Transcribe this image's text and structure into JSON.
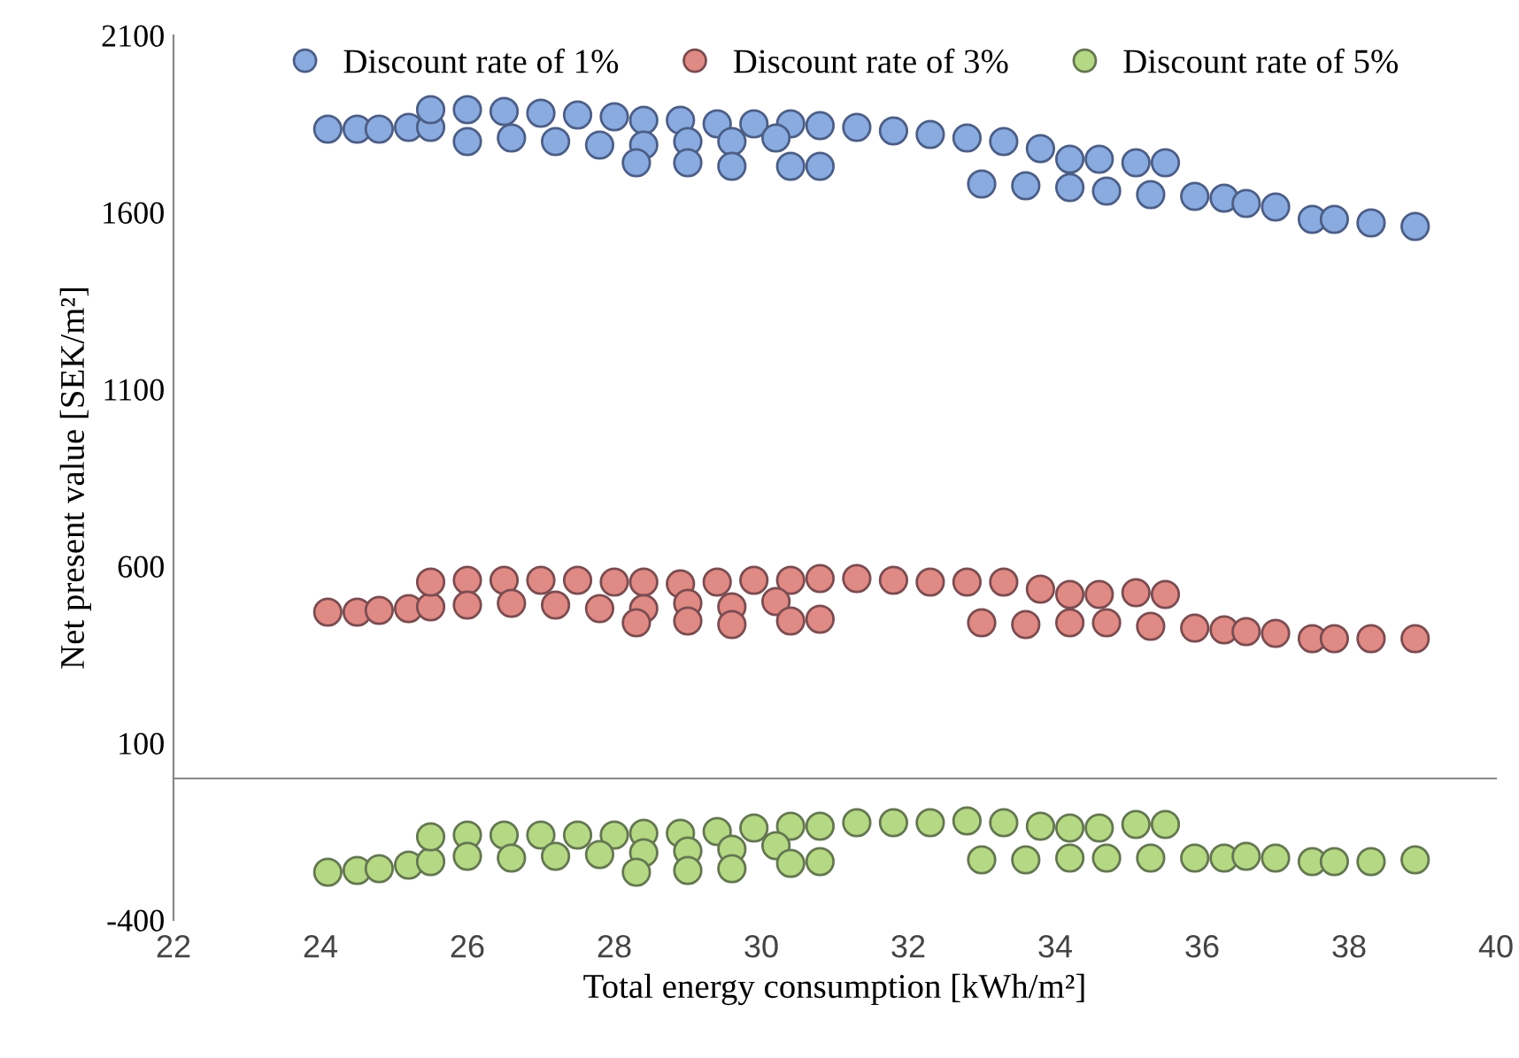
{
  "chart_data": {
    "type": "scatter",
    "xlabel": "Total energy consumption [kWh/m²]",
    "ylabel": "Net present value [SEK/m²]",
    "xlim": [
      22,
      40
    ],
    "xticks": [
      22,
      24,
      26,
      28,
      30,
      32,
      34,
      36,
      38,
      40
    ],
    "ylim": [
      -400,
      2100
    ],
    "yticks": [
      -400,
      100,
      600,
      1100,
      1600,
      2100
    ],
    "grid": false,
    "legend": "top",
    "marker": "circle",
    "series": [
      {
        "name": "Discount rate of 1%",
        "color": "#8aabe0",
        "x": [
          24.1,
          24.5,
          24.8,
          25.2,
          25.5,
          25.5,
          26.0,
          26.5,
          27.0,
          27.5,
          28.0,
          28.4,
          28.9,
          29.4,
          29.9,
          30.4,
          30.8,
          31.3,
          31.8,
          32.3,
          32.8,
          26.0,
          26.6,
          27.2,
          27.8,
          28.4,
          29.0,
          29.6,
          30.2,
          28.3,
          29.0,
          29.6,
          30.4,
          30.8,
          33.3,
          33.8,
          34.2,
          34.6,
          35.1,
          35.5,
          33.0,
          33.6,
          34.2,
          34.7,
          35.3,
          35.9,
          36.3,
          36.6,
          37.0,
          37.5,
          37.8,
          38.3,
          38.9
        ],
        "values": [
          1835,
          1835,
          1835,
          1840,
          1840,
          1890,
          1890,
          1885,
          1880,
          1875,
          1870,
          1860,
          1860,
          1850,
          1850,
          1850,
          1845,
          1840,
          1830,
          1820,
          1810,
          1800,
          1810,
          1800,
          1790,
          1790,
          1800,
          1800,
          1810,
          1740,
          1740,
          1730,
          1730,
          1730,
          1800,
          1780,
          1750,
          1750,
          1740,
          1740,
          1680,
          1675,
          1670,
          1660,
          1650,
          1645,
          1640,
          1625,
          1615,
          1580,
          1580,
          1570,
          1560
        ]
      },
      {
        "name": "Discount rate of 3%",
        "color": "#e08a85",
        "x": [
          24.1,
          24.5,
          24.8,
          25.2,
          25.5,
          25.5,
          26.0,
          26.5,
          27.0,
          27.5,
          28.0,
          28.4,
          28.9,
          29.4,
          29.9,
          30.4,
          30.8,
          31.3,
          31.8,
          32.3,
          32.8,
          26.0,
          26.6,
          27.2,
          27.8,
          28.4,
          29.0,
          29.6,
          30.2,
          28.3,
          29.0,
          29.6,
          30.4,
          30.8,
          33.3,
          33.8,
          34.2,
          34.6,
          35.1,
          35.5,
          33.0,
          33.6,
          34.2,
          34.7,
          35.3,
          35.9,
          36.3,
          36.6,
          37.0,
          37.5,
          37.8,
          38.3,
          38.9
        ],
        "values": [
          470,
          470,
          475,
          480,
          485,
          555,
          560,
          560,
          560,
          560,
          555,
          555,
          550,
          555,
          560,
          560,
          565,
          565,
          560,
          555,
          555,
          490,
          495,
          490,
          480,
          480,
          495,
          485,
          500,
          440,
          445,
          435,
          445,
          450,
          555,
          535,
          520,
          520,
          525,
          520,
          440,
          435,
          440,
          440,
          430,
          425,
          420,
          415,
          410,
          395,
          395,
          395,
          395
        ]
      },
      {
        "name": "Discount rate of 5%",
        "color": "#b5d885",
        "x": [
          24.1,
          24.5,
          24.8,
          25.2,
          25.5,
          25.5,
          26.0,
          26.5,
          27.0,
          27.5,
          28.0,
          28.4,
          28.9,
          29.4,
          29.9,
          30.4,
          30.8,
          31.3,
          31.8,
          32.3,
          32.8,
          26.0,
          26.6,
          27.2,
          27.8,
          28.4,
          29.0,
          29.6,
          30.2,
          28.3,
          29.0,
          29.6,
          30.4,
          30.8,
          33.3,
          33.8,
          34.2,
          34.6,
          35.1,
          35.5,
          33.0,
          33.6,
          34.2,
          34.7,
          35.3,
          35.9,
          36.3,
          36.6,
          37.0,
          37.5,
          37.8,
          38.3,
          38.9
        ],
        "values": [
          -265,
          -260,
          -255,
          -245,
          -235,
          -165,
          -160,
          -160,
          -160,
          -160,
          -160,
          -155,
          -155,
          -150,
          -140,
          -135,
          -135,
          -125,
          -125,
          -125,
          -120,
          -220,
          -225,
          -220,
          -215,
          -210,
          -205,
          -200,
          -190,
          -265,
          -260,
          -255,
          -240,
          -235,
          -125,
          -135,
          -140,
          -140,
          -130,
          -130,
          -230,
          -230,
          -225,
          -225,
          -225,
          -225,
          -225,
          -220,
          -225,
          -235,
          -235,
          -235,
          -230
        ]
      }
    ]
  }
}
